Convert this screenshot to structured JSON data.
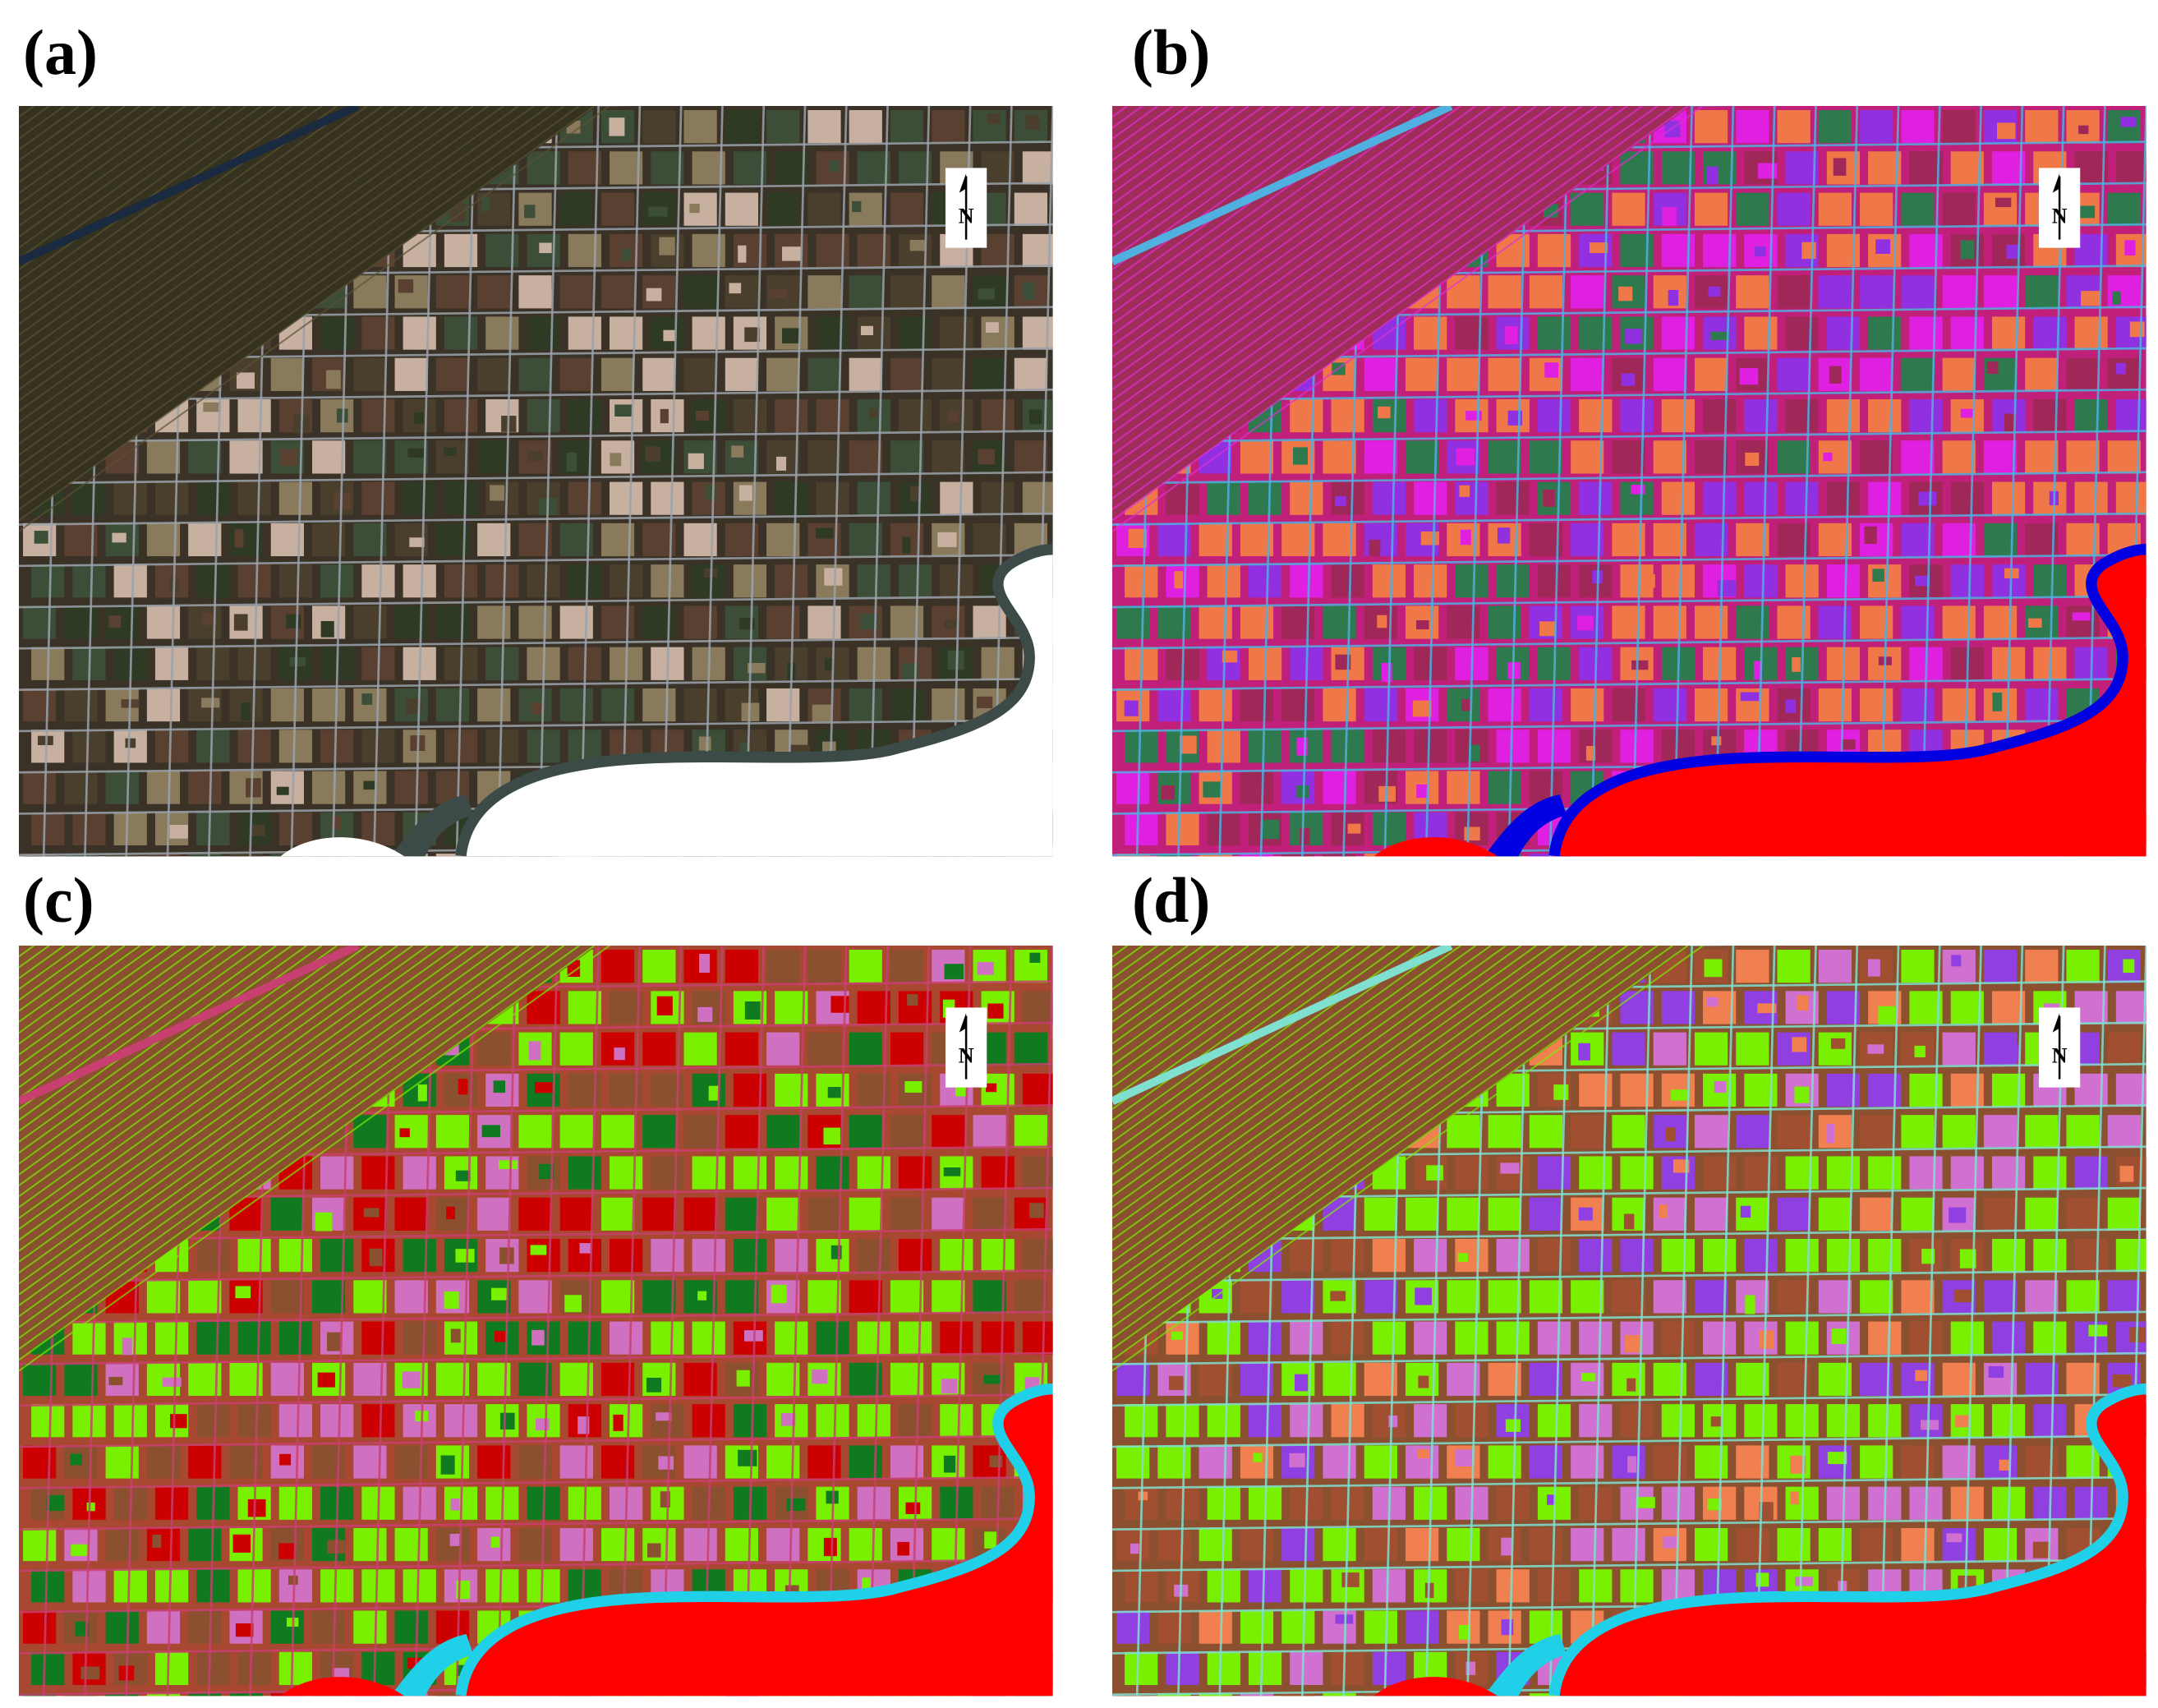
{
  "panels": [
    {
      "label": "(a)",
      "north": "N"
    },
    {
      "label": "(b)",
      "north": "N"
    },
    {
      "label": "(c)",
      "north": "N"
    },
    {
      "label": "(d)",
      "north": "N"
    }
  ]
}
